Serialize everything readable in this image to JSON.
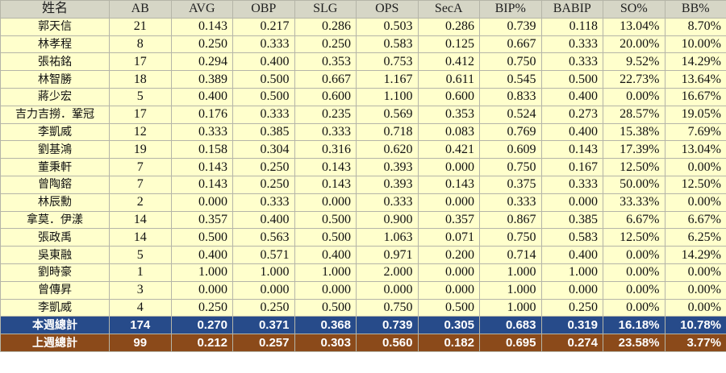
{
  "headers": [
    "姓名",
    "AB",
    "AVG",
    "OBP",
    "SLG",
    "OPS",
    "SecA",
    "BIP%",
    "BABIP",
    "SO%",
    "BB%"
  ],
  "rows": [
    [
      "郭天信",
      "21",
      "0.143",
      "0.217",
      "0.286",
      "0.503",
      "0.286",
      "0.739",
      "0.118",
      "13.04%",
      "8.70%"
    ],
    [
      "林孝程",
      "8",
      "0.250",
      "0.333",
      "0.250",
      "0.583",
      "0.125",
      "0.667",
      "0.333",
      "20.00%",
      "10.00%"
    ],
    [
      "張祐銘",
      "17",
      "0.294",
      "0.400",
      "0.353",
      "0.753",
      "0.412",
      "0.750",
      "0.333",
      "9.52%",
      "14.29%"
    ],
    [
      "林智勝",
      "18",
      "0.389",
      "0.500",
      "0.667",
      "1.167",
      "0.611",
      "0.545",
      "0.500",
      "22.73%",
      "13.64%"
    ],
    [
      "蔣少宏",
      "5",
      "0.400",
      "0.500",
      "0.600",
      "1.100",
      "0.600",
      "0.833",
      "0.400",
      "0.00%",
      "16.67%"
    ],
    [
      "吉力吉撈．鞏冠",
      "17",
      "0.176",
      "0.333",
      "0.235",
      "0.569",
      "0.353",
      "0.524",
      "0.273",
      "28.57%",
      "19.05%"
    ],
    [
      "李凱威",
      "12",
      "0.333",
      "0.385",
      "0.333",
      "0.718",
      "0.083",
      "0.769",
      "0.400",
      "15.38%",
      "7.69%"
    ],
    [
      "劉基鴻",
      "19",
      "0.158",
      "0.304",
      "0.316",
      "0.620",
      "0.421",
      "0.609",
      "0.143",
      "17.39%",
      "13.04%"
    ],
    [
      "董秉軒",
      "7",
      "0.143",
      "0.250",
      "0.143",
      "0.393",
      "0.000",
      "0.750",
      "0.167",
      "12.50%",
      "0.00%"
    ],
    [
      "曾陶鎔",
      "7",
      "0.143",
      "0.250",
      "0.143",
      "0.393",
      "0.143",
      "0.375",
      "0.333",
      "50.00%",
      "12.50%"
    ],
    [
      "林辰勳",
      "2",
      "0.000",
      "0.333",
      "0.000",
      "0.333",
      "0.000",
      "0.333",
      "0.000",
      "33.33%",
      "0.00%"
    ],
    [
      "拿莫．伊漾",
      "14",
      "0.357",
      "0.400",
      "0.500",
      "0.900",
      "0.357",
      "0.867",
      "0.385",
      "6.67%",
      "6.67%"
    ],
    [
      "張政禹",
      "14",
      "0.500",
      "0.563",
      "0.500",
      "1.063",
      "0.071",
      "0.750",
      "0.583",
      "12.50%",
      "6.25%"
    ],
    [
      "吳東融",
      "5",
      "0.400",
      "0.571",
      "0.400",
      "0.971",
      "0.200",
      "0.714",
      "0.400",
      "0.00%",
      "14.29%"
    ],
    [
      "劉時豪",
      "1",
      "1.000",
      "1.000",
      "1.000",
      "2.000",
      "0.000",
      "1.000",
      "1.000",
      "0.00%",
      "0.00%"
    ],
    [
      "曾傳昇",
      "3",
      "0.000",
      "0.000",
      "0.000",
      "0.000",
      "0.000",
      "1.000",
      "0.000",
      "0.00%",
      "0.00%"
    ],
    [
      "李凱威",
      "4",
      "0.250",
      "0.250",
      "0.500",
      "0.750",
      "0.500",
      "1.000",
      "0.250",
      "0.00%",
      "0.00%"
    ]
  ],
  "totals": {
    "this_week": [
      "本週總計",
      "174",
      "0.270",
      "0.371",
      "0.368",
      "0.739",
      "0.305",
      "0.683",
      "0.319",
      "16.18%",
      "10.78%"
    ],
    "last_week": [
      "上週總計",
      "99",
      "0.212",
      "0.257",
      "0.303",
      "0.560",
      "0.182",
      "0.695",
      "0.274",
      "23.58%",
      "3.77%"
    ]
  },
  "colors": {
    "header_bg": "#d6d6c6",
    "row_bg": "#ffffcc",
    "this_week_bg": "#274b8a",
    "last_week_bg": "#8b4a1a"
  }
}
